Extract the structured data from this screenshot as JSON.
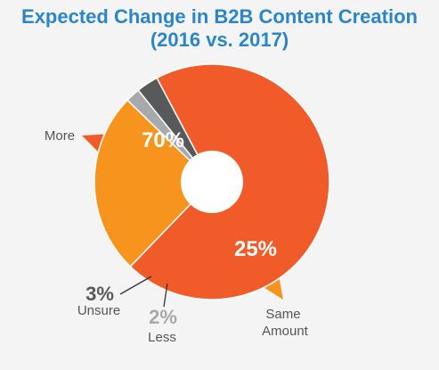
{
  "chart_data": {
    "type": "pie",
    "title": "Expected Change in B2B Content Creation",
    "subtitle": "(2016 vs. 2017)",
    "slices": [
      {
        "category": "More",
        "value": 70,
        "label": "70%",
        "color": "#f15a29"
      },
      {
        "category": "Same Amount",
        "value": 25,
        "label": "25%",
        "color": "#f7941d"
      },
      {
        "category": "Less",
        "value": 2,
        "label": "2%",
        "color": "#a7a9ac"
      },
      {
        "category": "Unsure",
        "value": 3,
        "label": "3%",
        "color": "#58595b"
      }
    ],
    "legend": "none"
  },
  "labels": {
    "more": "More",
    "same_line1": "Same",
    "same_line2": "Amount",
    "less": "Less",
    "unsure": "Unsure"
  }
}
